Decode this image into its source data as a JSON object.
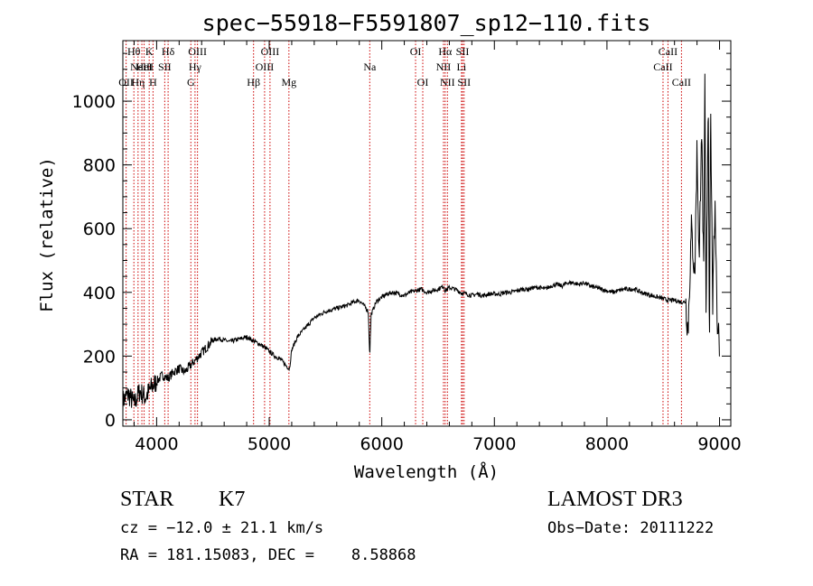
{
  "chart_data": {
    "type": "line",
    "title": "spec−55918−F5591807_sp12−110.fits",
    "xlabel": "Wavelength (Å)",
    "ylabel": "Flux (relative)",
    "xlim": [
      3700,
      9100
    ],
    "ylim": [
      -20,
      1190
    ],
    "xticks": [
      4000,
      5000,
      6000,
      7000,
      8000,
      9000
    ],
    "xtick_labels": [
      "4000",
      "5000",
      "6000",
      "7000",
      "8000",
      "9000"
    ],
    "yticks": [
      0,
      200,
      400,
      600,
      800,
      1000
    ],
    "ytick_labels": [
      "0",
      "200",
      "400",
      "600",
      "800",
      "1000"
    ],
    "series": [
      {
        "name": "flux",
        "x": [
          3700,
          3750,
          3800,
          3850,
          3900,
          3950,
          4000,
          4050,
          4100,
          4150,
          4200,
          4250,
          4300,
          4350,
          4400,
          4450,
          4500,
          4550,
          4600,
          4650,
          4700,
          4750,
          4800,
          4850,
          4900,
          4950,
          5000,
          5050,
          5100,
          5150,
          5180,
          5200,
          5250,
          5300,
          5350,
          5400,
          5450,
          5500,
          5550,
          5600,
          5650,
          5700,
          5750,
          5800,
          5850,
          5880,
          5893,
          5905,
          5950,
          6000,
          6050,
          6100,
          6150,
          6200,
          6250,
          6300,
          6350,
          6400,
          6450,
          6500,
          6550,
          6563,
          6600,
          6650,
          6700,
          6750,
          6800,
          6850,
          6900,
          6950,
          7000,
          7050,
          7100,
          7150,
          7200,
          7250,
          7300,
          7350,
          7400,
          7450,
          7500,
          7550,
          7600,
          7650,
          7700,
          7750,
          7800,
          7850,
          7900,
          7950,
          8000,
          8050,
          8100,
          8150,
          8200,
          8250,
          8300,
          8350,
          8400,
          8450,
          8500,
          8550,
          8600,
          8650,
          8700,
          8720,
          8750,
          8780,
          8800,
          8820,
          8840,
          8860,
          8870,
          8880,
          8900,
          8910,
          8920,
          8940,
          8960,
          8980,
          9000
        ],
        "y": [
          60,
          80,
          50,
          90,
          70,
          100,
          120,
          140,
          130,
          150,
          160,
          150,
          170,
          190,
          210,
          230,
          250,
          255,
          250,
          245,
          250,
          255,
          260,
          250,
          240,
          230,
          215,
          200,
          190,
          170,
          160,
          220,
          260,
          280,
          300,
          320,
          330,
          340,
          345,
          350,
          355,
          360,
          370,
          375,
          355,
          340,
          200,
          330,
          370,
          385,
          395,
          400,
          395,
          390,
          400,
          405,
          410,
          400,
          405,
          410,
          420,
          405,
          415,
          410,
          400,
          395,
          390,
          395,
          390,
          395,
          395,
          395,
          400,
          400,
          405,
          410,
          410,
          415,
          415,
          410,
          420,
          425,
          420,
          430,
          430,
          425,
          430,
          420,
          415,
          410,
          405,
          400,
          405,
          410,
          410,
          410,
          400,
          395,
          390,
          385,
          380,
          375,
          375,
          370,
          370,
          280,
          600,
          450,
          850,
          480,
          950,
          420,
          1100,
          300,
          1050,
          200,
          1000,
          350,
          700,
          300,
          250
        ]
      }
    ],
    "lines": [
      {
        "wavelength": 3729,
        "label": "OII",
        "row": 2
      },
      {
        "wavelength": 3798,
        "label": "Hθ",
        "row": 0
      },
      {
        "wavelength": 3835,
        "label": "Hη",
        "row": 2
      },
      {
        "wavelength": 3869,
        "label": "NeIII",
        "row": 1
      },
      {
        "wavelength": 3889,
        "label": "HeI",
        "row": 1
      },
      {
        "wavelength": 3934,
        "label": "K",
        "row": 0
      },
      {
        "wavelength": 3968,
        "label": "H",
        "row": 2
      },
      {
        "wavelength": 4072,
        "label": "SII",
        "row": 1
      },
      {
        "wavelength": 4102,
        "label": "Hδ",
        "row": 0
      },
      {
        "wavelength": 4304,
        "label": "G",
        "row": 2
      },
      {
        "wavelength": 4341,
        "label": "Hγ",
        "row": 1
      },
      {
        "wavelength": 4363,
        "label": "OIII",
        "row": 0
      },
      {
        "wavelength": 4861,
        "label": "Hβ",
        "row": 2
      },
      {
        "wavelength": 4959,
        "label": "OIII",
        "row": 1
      },
      {
        "wavelength": 5007,
        "label": "OIII",
        "row": 0
      },
      {
        "wavelength": 5175,
        "label": "Mg",
        "row": 2
      },
      {
        "wavelength": 5893,
        "label": "Na",
        "row": 1
      },
      {
        "wavelength": 6300,
        "label": "OI",
        "row": 0
      },
      {
        "wavelength": 6364,
        "label": "OI",
        "row": 2
      },
      {
        "wavelength": 6548,
        "label": "NII",
        "row": 1
      },
      {
        "wavelength": 6563,
        "label": "Hα",
        "row": 0
      },
      {
        "wavelength": 6583,
        "label": "NII",
        "row": 2
      },
      {
        "wavelength": 6708,
        "label": "Li",
        "row": 1
      },
      {
        "wavelength": 6717,
        "label": "SII",
        "row": 0
      },
      {
        "wavelength": 6731,
        "label": "SII",
        "row": 2
      },
      {
        "wavelength": 8498,
        "label": "CaII",
        "row": 1
      },
      {
        "wavelength": 8542,
        "label": "CaII",
        "row": 0
      },
      {
        "wavelength": 8662,
        "label": "CaII",
        "row": 2
      }
    ]
  },
  "info": {
    "class": "STAR",
    "subclass": "K7",
    "survey": "LAMOST DR3",
    "cz": "cz = −12.0 ± 21.1 km/s",
    "obs_date": "Obs−Date: 20111222",
    "radec": "RA = 181.15083, DEC =    8.58868"
  },
  "colors": {
    "line_marker": "#cc0000",
    "spectrum": "#000000",
    "axis": "#000000"
  }
}
